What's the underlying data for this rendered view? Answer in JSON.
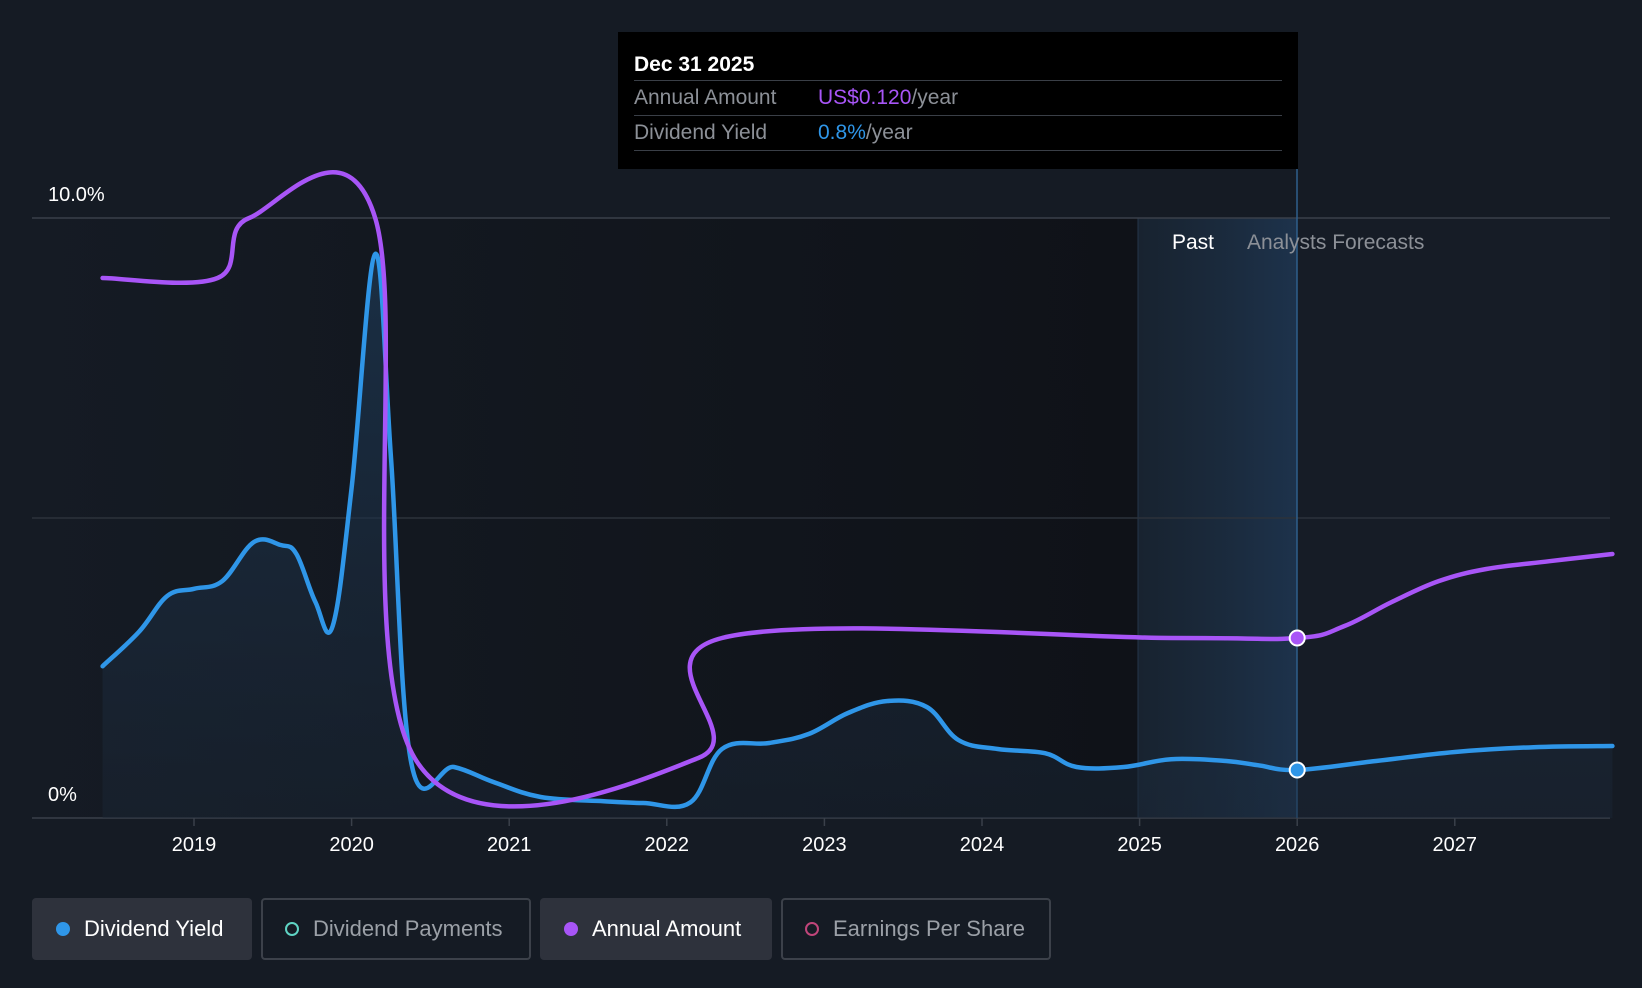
{
  "chart_data": {
    "type": "line",
    "y_labels": [
      "10.0%",
      "0%"
    ],
    "x_ticks": [
      "2019",
      "2020",
      "2021",
      "2022",
      "2023",
      "2024",
      "2025",
      "2026",
      "2027"
    ],
    "y_axis": {
      "min": 0,
      "max": 10
    },
    "regions": {
      "past": "Past",
      "forecast": "Analysts Forecasts"
    },
    "series": [
      {
        "name": "Dividend Yield",
        "color": "#2f96e8",
        "points": [
          [
            2018.42,
            2.53
          ],
          [
            2018.65,
            3.1
          ],
          [
            2018.83,
            3.7
          ],
          [
            2019.0,
            3.82
          ],
          [
            2019.18,
            3.95
          ],
          [
            2019.38,
            4.6
          ],
          [
            2019.55,
            4.55
          ],
          [
            2019.65,
            4.4
          ],
          [
            2019.77,
            3.6
          ],
          [
            2019.88,
            3.2
          ],
          [
            2020.0,
            5.5
          ],
          [
            2020.15,
            9.4
          ],
          [
            2020.25,
            6.0
          ],
          [
            2020.38,
            0.9
          ],
          [
            2020.65,
            0.85
          ],
          [
            2020.9,
            0.6
          ],
          [
            2021.2,
            0.35
          ],
          [
            2021.6,
            0.28
          ],
          [
            2021.85,
            0.25
          ],
          [
            2022.15,
            0.26
          ],
          [
            2022.35,
            1.15
          ],
          [
            2022.65,
            1.25
          ],
          [
            2022.9,
            1.4
          ],
          [
            2023.15,
            1.75
          ],
          [
            2023.4,
            1.95
          ],
          [
            2023.65,
            1.85
          ],
          [
            2023.85,
            1.3
          ],
          [
            2024.1,
            1.15
          ],
          [
            2024.4,
            1.08
          ],
          [
            2024.6,
            0.85
          ],
          [
            2024.9,
            0.85
          ],
          [
            2025.2,
            0.98
          ],
          [
            2025.55,
            0.95
          ],
          [
            2025.75,
            0.88
          ],
          [
            2026.0,
            0.8
          ],
          [
            2026.5,
            0.95
          ],
          [
            2027.0,
            1.1
          ],
          [
            2027.5,
            1.18
          ],
          [
            2028.0,
            1.2
          ]
        ]
      },
      {
        "name": "Annual Amount",
        "color": "#a855f7",
        "points": [
          [
            2018.42,
            9.0
          ],
          [
            2019.15,
            9.0
          ],
          [
            2019.35,
            10.0
          ],
          [
            2020.15,
            10.0
          ],
          [
            2020.4,
            1.0
          ],
          [
            2022.2,
            1.0
          ],
          [
            2022.35,
            3.0
          ],
          [
            2025.2,
            3.0
          ],
          [
            2026.0,
            3.0
          ],
          [
            2026.3,
            3.2
          ],
          [
            2026.6,
            3.6
          ],
          [
            2026.9,
            3.95
          ],
          [
            2027.2,
            4.15
          ],
          [
            2027.6,
            4.28
          ],
          [
            2028.0,
            4.4
          ]
        ]
      }
    ],
    "highlight": {
      "x": 2026.0,
      "yield": 0.8,
      "annual": 3.0
    }
  },
  "tooltip": {
    "date": "Dec 31 2025",
    "annual_label": "Annual Amount",
    "annual_value": "US$0.120",
    "annual_unit": "/year",
    "yield_label": "Dividend Yield",
    "yield_value": "0.8%",
    "yield_unit": "/year"
  },
  "legend": [
    {
      "label": "Dividend Yield",
      "color": "#2f96e8",
      "active": true,
      "filled": true
    },
    {
      "label": "Dividend Payments",
      "color": "#5fd4c4",
      "active": false,
      "filled": false
    },
    {
      "label": "Annual Amount",
      "color": "#a855f7",
      "active": true,
      "filled": true
    },
    {
      "label": "Earnings Per Share",
      "color": "#c0457a",
      "active": false,
      "filled": false
    }
  ]
}
